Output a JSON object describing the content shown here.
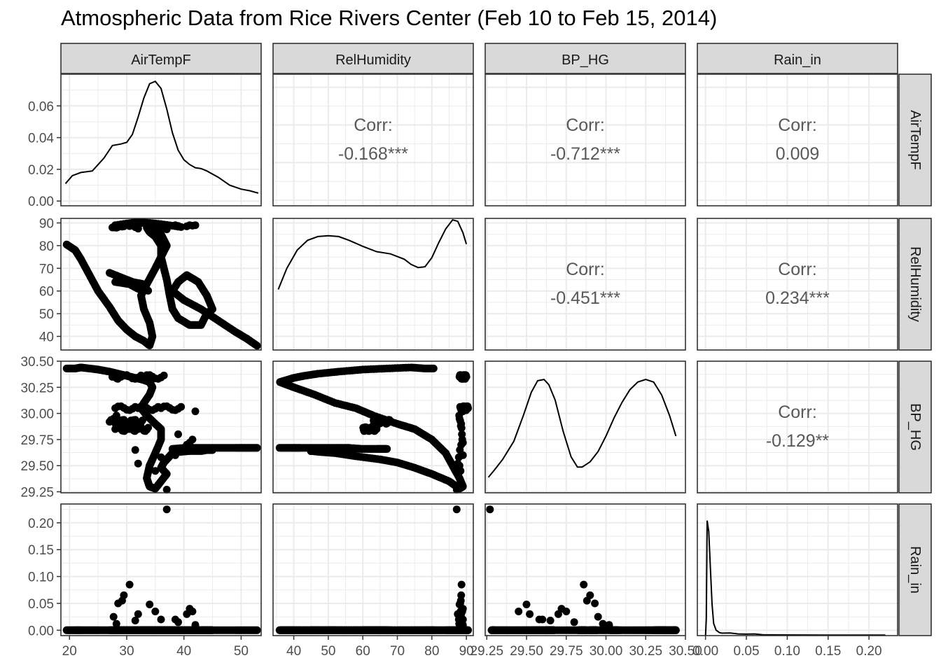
{
  "chart_data": {
    "type": "scatter",
    "title": "Atmospheric Data from Rice Rivers Center (Feb 10 to Feb 15, 2014)",
    "variables": [
      "AirTempF",
      "RelHumidity",
      "BP_HG",
      "Rain_in"
    ],
    "grid": true,
    "axes": {
      "AirTempF": {
        "range": [
          18.5,
          53.5
        ],
        "ticks": [
          20,
          30,
          40,
          50
        ],
        "tick_labels": [
          "20",
          "30",
          "40",
          "50"
        ]
      },
      "RelHumidity": {
        "range": [
          34,
          92
        ],
        "ticks": [
          40,
          50,
          60,
          70,
          80,
          90
        ],
        "tick_labels": [
          "40",
          "50",
          "60",
          "70",
          "80",
          "90"
        ]
      },
      "BP_HG": {
        "range": [
          29.24,
          30.5
        ],
        "ticks": [
          29.25,
          29.5,
          29.75,
          30.0,
          30.25,
          30.5
        ],
        "tick_labels": [
          "29.25",
          "29.50",
          "29.75",
          "30.00",
          "30.25",
          "30.50"
        ]
      },
      "Rain_in": {
        "range": [
          -0.01,
          0.235
        ],
        "ticks": [
          0.0,
          0.05,
          0.1,
          0.15,
          0.2
        ],
        "tick_labels": [
          "0.00",
          "0.05",
          "0.10",
          "0.15",
          "0.20"
        ]
      }
    },
    "density_axis": {
      "range": [
        -0.003,
        0.08
      ],
      "ticks": [
        0.0,
        0.02,
        0.04,
        0.06
      ],
      "tick_labels": [
        "0.00",
        "0.02",
        "0.04",
        "0.06"
      ]
    },
    "correlations": [
      {
        "row": "AirTempF",
        "col": "RelHumidity",
        "label": "Corr:",
        "value": "-0.168***"
      },
      {
        "row": "AirTempF",
        "col": "BP_HG",
        "label": "Corr:",
        "value": "-0.712***"
      },
      {
        "row": "AirTempF",
        "col": "Rain_in",
        "label": "Corr:",
        "value": "0.009"
      },
      {
        "row": "RelHumidity",
        "col": "BP_HG",
        "label": "Corr:",
        "value": "-0.451***"
      },
      {
        "row": "RelHumidity",
        "col": "Rain_in",
        "label": "Corr:",
        "value": "0.234***"
      },
      {
        "row": "BP_HG",
        "col": "Rain_in",
        "label": "Corr:",
        "value": "-0.129**"
      }
    ],
    "densities": {
      "AirTempF": [
        [
          19.3,
          0.011
        ],
        [
          20.5,
          0.016
        ],
        [
          22,
          0.018
        ],
        [
          24,
          0.019
        ],
        [
          26,
          0.027
        ],
        [
          27.5,
          0.035
        ],
        [
          29,
          0.036
        ],
        [
          30,
          0.037
        ],
        [
          31,
          0.042
        ],
        [
          32,
          0.053
        ],
        [
          33,
          0.065
        ],
        [
          34,
          0.074
        ],
        [
          35,
          0.0755
        ],
        [
          36,
          0.071
        ],
        [
          37,
          0.058
        ],
        [
          38,
          0.043
        ],
        [
          39,
          0.032
        ],
        [
          40,
          0.026
        ],
        [
          41,
          0.023
        ],
        [
          42,
          0.021
        ],
        [
          43,
          0.0205
        ],
        [
          44,
          0.019
        ],
        [
          46,
          0.015
        ],
        [
          48,
          0.01
        ],
        [
          50,
          0.0075
        ],
        [
          51.5,
          0.0065
        ],
        [
          53,
          0.005
        ]
      ],
      "RelHumidity": [
        [
          35.5,
          0.08
        ],
        [
          38,
          0.108
        ],
        [
          41,
          0.132
        ],
        [
          44,
          0.145
        ],
        [
          47,
          0.15
        ],
        [
          50,
          0.151
        ],
        [
          53,
          0.15
        ],
        [
          56,
          0.145
        ],
        [
          60,
          0.137
        ],
        [
          64,
          0.13
        ],
        [
          68,
          0.127
        ],
        [
          72,
          0.12
        ],
        [
          74,
          0.113
        ],
        [
          76,
          0.109
        ],
        [
          78,
          0.11
        ],
        [
          80,
          0.122
        ],
        [
          82,
          0.142
        ],
        [
          84,
          0.16
        ],
        [
          86,
          0.172
        ],
        [
          87.5,
          0.17
        ],
        [
          89,
          0.155
        ],
        [
          90,
          0.14
        ]
      ],
      "BP_HG": [
        [
          29.26,
          0.06
        ],
        [
          29.3,
          0.09
        ],
        [
          29.35,
          0.13
        ],
        [
          29.42,
          0.2
        ],
        [
          29.48,
          0.3
        ],
        [
          29.53,
          0.39
        ],
        [
          29.57,
          0.435
        ],
        [
          29.61,
          0.44
        ],
        [
          29.64,
          0.42
        ],
        [
          29.68,
          0.36
        ],
        [
          29.73,
          0.24
        ],
        [
          29.78,
          0.14
        ],
        [
          29.82,
          0.1
        ],
        [
          29.85,
          0.1
        ],
        [
          29.9,
          0.12
        ],
        [
          29.95,
          0.16
        ],
        [
          30.0,
          0.22
        ],
        [
          30.05,
          0.29
        ],
        [
          30.1,
          0.35
        ],
        [
          30.15,
          0.4
        ],
        [
          30.2,
          0.43
        ],
        [
          30.25,
          0.44
        ],
        [
          30.3,
          0.43
        ],
        [
          30.35,
          0.38
        ],
        [
          30.4,
          0.3
        ],
        [
          30.44,
          0.22
        ]
      ],
      "Rain_in": [
        [
          0.0,
          0.0
        ],
        [
          0.001,
          0.14
        ],
        [
          0.002,
          0.95
        ],
        [
          0.004,
          0.86
        ],
        [
          0.006,
          0.55
        ],
        [
          0.008,
          0.26
        ],
        [
          0.01,
          0.1
        ],
        [
          0.013,
          0.045
        ],
        [
          0.017,
          0.025
        ],
        [
          0.02,
          0.02
        ],
        [
          0.03,
          0.022
        ],
        [
          0.04,
          0.014
        ],
        [
          0.05,
          0.012
        ],
        [
          0.06,
          0.014
        ],
        [
          0.07,
          0.007
        ],
        [
          0.09,
          0.006
        ],
        [
          0.12,
          0.005
        ],
        [
          0.15,
          0.004
        ],
        [
          0.18,
          0.004
        ],
        [
          0.22,
          0.004
        ]
      ]
    },
    "density_ranges": {
      "RelHumidity": [
        0,
        0.16
      ],
      "BP_HG": [
        0,
        0.47
      ],
      "Rain_in": [
        0,
        1.0
      ]
    },
    "trajectory_anchors": [
      [
        19.5,
        80.5,
        30.43
      ],
      [
        21,
        78,
        30.43
      ],
      [
        22,
        74,
        30.44
      ],
      [
        23.5,
        67,
        30.43
      ],
      [
        25,
        60,
        30.42
      ],
      [
        27,
        53,
        30.4
      ],
      [
        28.5,
        47,
        30.38
      ],
      [
        30,
        43,
        30.36
      ],
      [
        31.5,
        40,
        30.34
      ],
      [
        33,
        38,
        30.32
      ],
      [
        34,
        36,
        30.3
      ],
      [
        34.5,
        40,
        30.25
      ],
      [
        34,
        46,
        30.18
      ],
      [
        33,
        52,
        30.1
      ],
      [
        32.5,
        58,
        30.05
      ],
      [
        33.5,
        63,
        29.98
      ],
      [
        35,
        70,
        29.9
      ],
      [
        36,
        75,
        29.85
      ],
      [
        36,
        80,
        29.75
      ],
      [
        35,
        84,
        29.62
      ],
      [
        34,
        86,
        29.5
      ],
      [
        33.5,
        88,
        29.38
      ],
      [
        34,
        89,
        29.3
      ],
      [
        35,
        88,
        29.28
      ],
      [
        36,
        85,
        29.35
      ],
      [
        37,
        80,
        29.42
      ],
      [
        36,
        75,
        29.48
      ],
      [
        36.5,
        70,
        29.53
      ],
      [
        37,
        65,
        29.56
      ],
      [
        37.5,
        58,
        29.59
      ],
      [
        38,
        52,
        29.62
      ],
      [
        39,
        48,
        29.63
      ],
      [
        41,
        45,
        29.64
      ],
      [
        43,
        45,
        29.64
      ],
      [
        44,
        50,
        29.65
      ],
      [
        45,
        52,
        29.65
      ],
      [
        44,
        58,
        29.66
      ],
      [
        42.5,
        64,
        29.66
      ],
      [
        40.5,
        67,
        29.66
      ],
      [
        39,
        64,
        29.66
      ],
      [
        38,
        60,
        29.66
      ],
      [
        40,
        56,
        29.67
      ],
      [
        43,
        52,
        29.67
      ],
      [
        46,
        47,
        29.67
      ],
      [
        49,
        42,
        29.67
      ],
      [
        51,
        39,
        29.67
      ],
      [
        53,
        35.5,
        29.67
      ]
    ],
    "cross_anchors": [
      {
        "p": [
          [
            28,
            89
          ],
          [
            32,
            90.5
          ],
          [
            36,
            89.5
          ],
          [
            40,
            88
          ]
        ],
        "b": 30.05
      },
      {
        "p": [
          [
            27.5,
            88
          ],
          [
            29,
            89
          ],
          [
            33,
            90
          ],
          [
            37,
            88.5
          ]
        ],
        "b": 30.35
      },
      {
        "p": [
          [
            28,
            64
          ],
          [
            30.5,
            63
          ],
          [
            32,
            61
          ],
          [
            34,
            60
          ]
        ],
        "b": 29.85
      },
      {
        "p": [
          [
            27,
            68
          ],
          [
            29,
            66
          ],
          [
            31,
            64
          ],
          [
            33,
            63
          ]
        ],
        "b": 29.92
      }
    ],
    "rain_events": [
      [
        37,
        87.2,
        29.27,
        0.225
      ],
      [
        30.5,
        88.6,
        29.86,
        0.085
      ],
      [
        29.5,
        88.5,
        29.9,
        0.065
      ],
      [
        28.5,
        88.2,
        29.93,
        0.05
      ],
      [
        27.7,
        88,
        29.95,
        0.025
      ],
      [
        29.2,
        88.4,
        29.88,
        0.055
      ],
      [
        34,
        88,
        29.5,
        0.048
      ],
      [
        41,
        89,
        29.72,
        0.04
      ],
      [
        41.5,
        88.8,
        29.75,
        0.035
      ],
      [
        40.5,
        88.5,
        29.7,
        0.03
      ],
      [
        32,
        87.5,
        29.52,
        0.03
      ],
      [
        36,
        87.8,
        29.58,
        0.02
      ],
      [
        39,
        88.7,
        29.8,
        0.015
      ],
      [
        31.5,
        88.1,
        29.65,
        0.018
      ],
      [
        28.2,
        87.9,
        29.98,
        0.012
      ],
      [
        42,
        89,
        30.02,
        0.01
      ],
      [
        35,
        88.3,
        29.45,
        0.035
      ],
      [
        38.5,
        89,
        29.6,
        0.02
      ]
    ]
  }
}
